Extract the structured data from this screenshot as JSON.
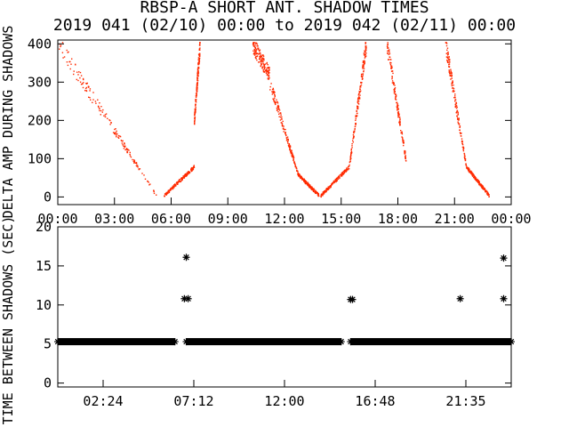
{
  "title": "RBSP-A SHORT ANT. SHADOW TIMES",
  "subtitle": "2019 041 (02/10) 00:00 to 2019 042 (02/11) 00:00",
  "chart_data": [
    {
      "type": "scatter",
      "ylabel": "DELTA AMP DURING SHADOWS",
      "xlabel": "",
      "ylim": [
        -20,
        410
      ],
      "xlim": [
        0,
        24
      ],
      "yticks": [
        "0",
        "100",
        "200",
        "300",
        "400"
      ],
      "xticks": [
        "00:00",
        "03:00",
        "06:00",
        "09:00",
        "12:00",
        "15:00",
        "18:00",
        "21:00",
        "00:00"
      ],
      "color": "#ff2a00",
      "grid": false,
      "segments": [
        {
          "x_start": 0.0,
          "x_end": 5.2,
          "y_start": 400,
          "y_end": 5
        },
        {
          "x_start": 5.6,
          "x_end": 7.2,
          "y_start": 5,
          "y_end": 80
        },
        {
          "x_start": 7.2,
          "x_end": 7.5,
          "y_start": 200,
          "y_end": 400
        },
        {
          "x_start": 10.3,
          "x_end": 11.2,
          "y_start": 400,
          "y_end": 320
        },
        {
          "x_start": 11.2,
          "x_end": 12.7,
          "y_start": 300,
          "y_end": 60
        },
        {
          "x_start": 12.7,
          "x_end": 13.8,
          "y_start": 60,
          "y_end": 5
        },
        {
          "x_start": 13.9,
          "x_end": 15.4,
          "y_start": 5,
          "y_end": 80
        },
        {
          "x_start": 15.4,
          "x_end": 16.3,
          "y_start": 80,
          "y_end": 400
        },
        {
          "x_start": 17.4,
          "x_end": 18.4,
          "y_start": 400,
          "y_end": 100
        },
        {
          "x_start": 20.5,
          "x_end": 21.6,
          "y_start": 400,
          "y_end": 80
        },
        {
          "x_start": 21.6,
          "x_end": 22.8,
          "y_start": 80,
          "y_end": 5
        }
      ]
    },
    {
      "type": "scatter",
      "ylabel": "TIME BETWEEN SHADOWS (SEC)",
      "xlabel": "",
      "ylim": [
        -0.5,
        20
      ],
      "xlim": [
        0,
        24
      ],
      "yticks": [
        "0",
        "5",
        "10",
        "15",
        "20"
      ],
      "xticks": [
        "02:24",
        "07:12",
        "12:00",
        "16:48",
        "21:35"
      ],
      "marker": "*",
      "color": "#000000",
      "baseline": {
        "y": 5.3,
        "ranges": [
          [
            0,
            6.2
          ],
          [
            6.8,
            15.0
          ],
          [
            15.5,
            24
          ]
        ]
      },
      "points": [
        {
          "x": 6.8,
          "y": 16.1
        },
        {
          "x": 6.7,
          "y": 10.8
        },
        {
          "x": 6.9,
          "y": 10.8
        },
        {
          "x": 15.5,
          "y": 10.7
        },
        {
          "x": 15.6,
          "y": 10.7
        },
        {
          "x": 21.3,
          "y": 10.8
        },
        {
          "x": 23.6,
          "y": 16.0
        },
        {
          "x": 23.6,
          "y": 10.8
        }
      ]
    }
  ]
}
